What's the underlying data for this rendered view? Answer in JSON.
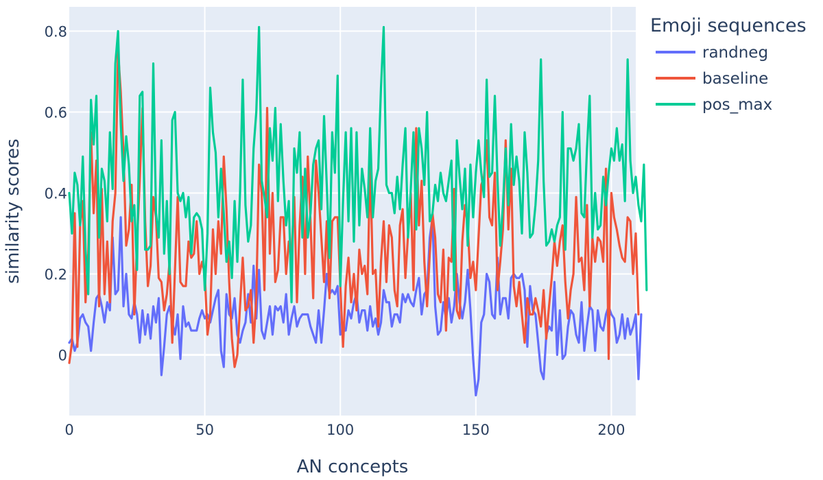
{
  "chart_data": {
    "type": "line",
    "xlabel": "AN concepts",
    "ylabel": "similarity scores",
    "xlim": [
      0,
      209
    ],
    "ylim": [
      -0.15,
      0.86
    ],
    "xticks": [
      0,
      50,
      100,
      150,
      200
    ],
    "yticks": [
      0,
      0.2,
      0.4,
      0.6,
      0.8
    ],
    "ytick_labels": [
      "0",
      "0.2",
      "0.4",
      "0.6",
      "0.8"
    ],
    "grid": true,
    "plot_background": "#e5ecf6",
    "legend": {
      "title": "Emoji sequences",
      "placement": "top-right-outside"
    },
    "series": [
      {
        "name": "randneg",
        "color": "#636efa",
        "values": [
          0.03,
          0.04,
          0.01,
          0.03,
          0.09,
          0.1,
          0.08,
          0.07,
          0.01,
          0.08,
          0.14,
          0.15,
          0.12,
          0.08,
          0.13,
          0.11,
          0.29,
          0.15,
          0.16,
          0.34,
          0.12,
          0.2,
          0.1,
          0.09,
          0.13,
          0.1,
          0.03,
          0.11,
          0.05,
          0.1,
          0.04,
          0.12,
          0.08,
          0.14,
          -0.05,
          0.02,
          0.1,
          0.12,
          0.08,
          0.05,
          0.1,
          -0.01,
          0.12,
          0.07,
          0.08,
          0.06,
          0.06,
          0.06,
          0.09,
          0.11,
          0.09,
          0.1,
          0.08,
          0.11,
          0.14,
          0.16,
          0.01,
          -0.03,
          0.15,
          0.1,
          0.09,
          0.14,
          0.05,
          0.03,
          0.06,
          0.08,
          0.15,
          0.08,
          0.22,
          0.09,
          0.21,
          0.06,
          0.04,
          0.08,
          0.12,
          0.05,
          0.12,
          0.11,
          0.12,
          0.08,
          0.15,
          0.05,
          0.09,
          0.12,
          0.07,
          0.09,
          0.1,
          0.1,
          0.1,
          0.07,
          0.05,
          0.03,
          0.11,
          0.03,
          0.11,
          0.2,
          0.15,
          0.16,
          0.15,
          0.17,
          0.05,
          0.06,
          0.06,
          0.11,
          0.09,
          0.13,
          0.15,
          0.08,
          0.11,
          0.11,
          0.06,
          0.12,
          0.07,
          0.09,
          0.05,
          0.08,
          0.16,
          0.13,
          0.13,
          0.07,
          0.1,
          0.1,
          0.08,
          0.15,
          0.13,
          0.15,
          0.13,
          0.12,
          0.16,
          0.19,
          0.1,
          0.15,
          0.16,
          0.29,
          0.34,
          0.12,
          0.05,
          0.06,
          0.13,
          0.09,
          0.14,
          0.08,
          0.12,
          0.2,
          0.13,
          0.09,
          0.13,
          0.21,
          0.11,
          -0.01,
          -0.1,
          -0.06,
          0.08,
          0.1,
          0.2,
          0.18,
          0.1,
          0.09,
          0.24,
          0.1,
          0.14,
          0.14,
          0.09,
          0.19,
          0.2,
          0.19,
          0.19,
          0.2,
          0.16,
          0.02,
          0.17,
          0.11,
          0.1,
          0.03,
          -0.04,
          -0.06,
          0.05,
          0.07,
          0.06,
          0.18,
          0.0,
          0.11,
          -0.01,
          0.0,
          0.07,
          0.11,
          0.1,
          0.05,
          0.03,
          0.13,
          0.01,
          0.07,
          0.12,
          0.11,
          0.01,
          0.11,
          0.07,
          0.06,
          0.1,
          0.12,
          0.1,
          0.09,
          0.03,
          0.05,
          0.1,
          0.04,
          0.09,
          0.05,
          0.07,
          0.1,
          -0.06,
          0.1
        ]
      },
      {
        "name": "baseline",
        "color": "#ef553b",
        "values": [
          -0.02,
          0.03,
          0.35,
          0.02,
          0.32,
          0.38,
          0.13,
          0.25,
          0.55,
          0.35,
          0.48,
          0.12,
          0.41,
          0.15,
          0.28,
          0.13,
          0.33,
          0.4,
          0.75,
          0.65,
          0.5,
          0.27,
          0.31,
          0.42,
          0.1,
          0.28,
          0.43,
          0.61,
          0.33,
          0.17,
          0.22,
          0.39,
          0.34,
          0.19,
          0.18,
          0.11,
          0.15,
          0.23,
          0.03,
          0.21,
          0.39,
          0.18,
          0.17,
          0.17,
          0.28,
          0.24,
          0.25,
          0.33,
          0.2,
          0.23,
          0.2,
          0.05,
          0.1,
          0.31,
          0.2,
          0.33,
          0.25,
          0.49,
          0.36,
          0.18,
          0.04,
          -0.03,
          0.0,
          0.12,
          0.24,
          0.11,
          0.12,
          0.16,
          0.03,
          0.14,
          0.47,
          0.4,
          0.16,
          0.61,
          0.25,
          0.4,
          0.18,
          0.21,
          0.34,
          0.34,
          0.2,
          0.28,
          0.25,
          0.39,
          0.13,
          0.32,
          0.44,
          0.2,
          0.49,
          0.33,
          0.14,
          0.48,
          0.4,
          0.29,
          0.18,
          0.33,
          0.14,
          0.33,
          0.34,
          0.34,
          0.17,
          0.02,
          0.17,
          0.24,
          0.13,
          0.2,
          0.11,
          0.26,
          0.2,
          0.22,
          0.15,
          0.48,
          0.2,
          0.21,
          0.07,
          0.23,
          0.33,
          0.18,
          0.32,
          0.29,
          0.16,
          0.12,
          0.32,
          0.36,
          0.19,
          0.3,
          0.4,
          0.16,
          0.56,
          0.32,
          0.43,
          0.23,
          0.12,
          0.25,
          0.35,
          0.29,
          0.15,
          0.13,
          0.26,
          0.06,
          0.24,
          0.23,
          0.41,
          0.11,
          0.09,
          0.28,
          0.37,
          0.32,
          0.19,
          0.23,
          0.16,
          0.29,
          0.42,
          0.44,
          0.53,
          0.34,
          0.32,
          0.45,
          0.16,
          0.23,
          0.31,
          0.53,
          0.31,
          0.46,
          0.17,
          0.12,
          0.18,
          0.1,
          0.03,
          0.14,
          0.1,
          0.1,
          0.14,
          0.11,
          0.07,
          0.16,
          0.04,
          0.12,
          0.19,
          0.28,
          0.22,
          0.28,
          0.32,
          0.18,
          0.09,
          0.16,
          0.2,
          0.39,
          0.23,
          0.24,
          0.16,
          0.37,
          0.12,
          0.29,
          0.23,
          0.29,
          0.28,
          0.23,
          0.46,
          -0.01,
          0.4,
          0.34,
          0.31,
          0.27,
          0.24,
          0.23,
          0.34,
          0.33,
          0.2,
          0.3,
          0.1
        ]
      },
      {
        "name": "pos_max",
        "color": "#00cc96",
        "values": [
          0.4,
          0.3,
          0.45,
          0.42,
          0.32,
          0.49,
          0.26,
          0.15,
          0.63,
          0.52,
          0.64,
          0.29,
          0.46,
          0.43,
          0.33,
          0.55,
          0.41,
          0.72,
          0.8,
          0.57,
          0.43,
          0.54,
          0.47,
          0.33,
          0.37,
          0.21,
          0.64,
          0.65,
          0.26,
          0.26,
          0.27,
          0.72,
          0.35,
          0.29,
          0.53,
          0.25,
          0.38,
          0.2,
          0.58,
          0.6,
          0.4,
          0.38,
          0.4,
          0.34,
          0.39,
          0.25,
          0.34,
          0.35,
          0.34,
          0.31,
          0.16,
          0.3,
          0.66,
          0.55,
          0.5,
          0.34,
          0.46,
          0.35,
          0.23,
          0.28,
          0.19,
          0.38,
          0.23,
          0.4,
          0.68,
          0.37,
          0.28,
          0.32,
          0.51,
          0.6,
          0.81,
          0.43,
          0.39,
          0.34,
          0.56,
          0.48,
          0.61,
          0.38,
          0.57,
          0.43,
          0.32,
          0.38,
          0.13,
          0.51,
          0.45,
          0.55,
          0.29,
          0.46,
          0.29,
          0.35,
          0.47,
          0.51,
          0.53,
          0.36,
          0.59,
          0.42,
          0.24,
          0.55,
          0.45,
          0.69,
          0.17,
          0.38,
          0.55,
          0.33,
          0.56,
          0.28,
          0.55,
          0.32,
          0.46,
          0.41,
          0.34,
          0.56,
          0.34,
          0.43,
          0.46,
          0.66,
          0.81,
          0.42,
          0.4,
          0.4,
          0.35,
          0.44,
          0.36,
          0.47,
          0.56,
          0.29,
          0.41,
          0.55,
          0.31,
          0.56,
          0.51,
          0.42,
          0.6,
          0.33,
          0.35,
          0.42,
          0.38,
          0.45,
          0.4,
          0.38,
          0.43,
          0.48,
          0.16,
          0.53,
          0.44,
          0.36,
          0.46,
          0.27,
          0.47,
          0.34,
          0.45,
          0.53,
          0.45,
          0.39,
          0.68,
          0.44,
          0.45,
          0.64,
          0.43,
          0.27,
          0.37,
          0.51,
          0.37,
          0.57,
          0.42,
          0.49,
          0.43,
          0.3,
          0.55,
          0.45,
          0.29,
          0.3,
          0.37,
          0.48,
          0.73,
          0.43,
          0.27,
          0.28,
          0.31,
          0.28,
          0.32,
          0.34,
          0.6,
          0.26,
          0.51,
          0.51,
          0.48,
          0.51,
          0.57,
          0.35,
          0.34,
          0.51,
          0.64,
          0.29,
          0.4,
          0.31,
          0.32,
          0.44,
          0.37,
          0.45,
          0.51,
          0.48,
          0.56,
          0.48,
          0.52,
          0.38,
          0.73,
          0.48,
          0.4,
          0.44,
          0.37,
          0.33,
          0.47,
          0.16
        ]
      }
    ]
  }
}
